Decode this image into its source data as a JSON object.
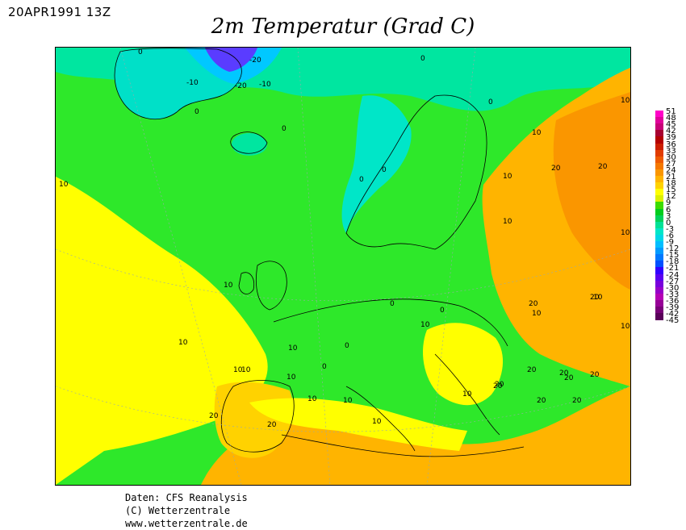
{
  "header": {
    "date_label": "20APR1991 13Z",
    "title": "2m Temperatur (Grad C)"
  },
  "footer": {
    "line1": "Daten: CFS Reanalysis",
    "line2": "(C) Wetterzentrale",
    "line3": "www.wetterzentrale.de"
  },
  "legend": {
    "labels": [
      "51",
      "48",
      "45",
      "42",
      "39",
      "36",
      "33",
      "30",
      "27",
      "24",
      "21",
      "18",
      "15",
      "12",
      "9",
      "6",
      "3",
      "0",
      "-3",
      "-6",
      "-9",
      "-12",
      "-15",
      "-18",
      "-21",
      "-24",
      "-27",
      "-30",
      "-33",
      "-36",
      "-39",
      "-42",
      "-45"
    ],
    "colors": [
      "#ff00c8",
      "#e0009a",
      "#c80078",
      "#a80030",
      "#b40000",
      "#cc1e00",
      "#e13c00",
      "#ee5a00",
      "#f57800",
      "#fa9600",
      "#ffb400",
      "#ffd200",
      "#ffff00",
      "#dcf000",
      "#3cdc00",
      "#00cd1e",
      "#00d25a",
      "#00e196",
      "#00e6c8",
      "#00d7e6",
      "#00beff",
      "#009bff",
      "#0078ff",
      "#0050ff",
      "#3200ff",
      "#5a00f0",
      "#7800dc",
      "#9600c8",
      "#b400b4",
      "#960096",
      "#780078",
      "#5a005a"
    ]
  },
  "contour_labels": [
    {
      "text": "0"
    },
    {
      "text": "-20"
    },
    {
      "text": "-10"
    },
    {
      "text": "-20"
    },
    {
      "text": "-10"
    },
    {
      "text": "0"
    },
    {
      "text": "0"
    },
    {
      "text": "0"
    },
    {
      "text": "10"
    },
    {
      "text": "10"
    },
    {
      "text": "10"
    },
    {
      "text": "20"
    },
    {
      "text": "10"
    },
    {
      "text": "20"
    },
    {
      "text": "10"
    },
    {
      "text": "0"
    },
    {
      "text": "0"
    },
    {
      "text": "0"
    },
    {
      "text": "10"
    },
    {
      "text": "10"
    },
    {
      "text": "10"
    },
    {
      "text": "10"
    },
    {
      "text": "0"
    },
    {
      "text": "0"
    },
    {
      "text": "10"
    },
    {
      "text": "10"
    },
    {
      "text": "10"
    },
    {
      "text": "20"
    },
    {
      "text": "10"
    },
    {
      "text": "10"
    },
    {
      "text": "20"
    },
    {
      "text": "10"
    },
    {
      "text": "20"
    },
    {
      "text": "20"
    },
    {
      "text": "20"
    },
    {
      "text": "20"
    },
    {
      "text": "10"
    },
    {
      "text": "20"
    },
    {
      "text": "0"
    },
    {
      "text": "0"
    },
    {
      "text": "10"
    },
    {
      "text": "10"
    },
    {
      "text": "10"
    },
    {
      "text": "20"
    },
    {
      "text": "20"
    },
    {
      "text": "20"
    },
    {
      "text": "10"
    },
    {
      "text": "20"
    },
    {
      "text": "20"
    }
  ]
}
